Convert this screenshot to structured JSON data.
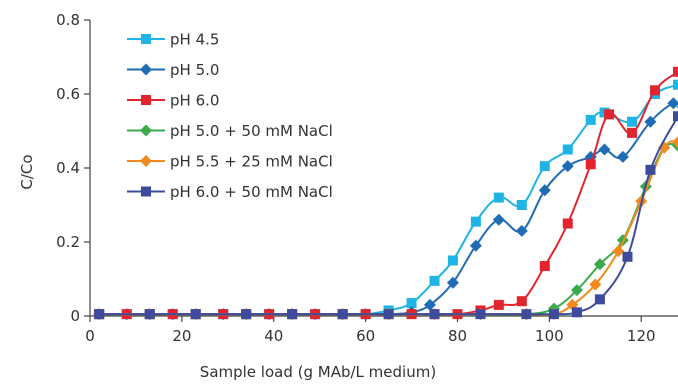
{
  "chart_data": {
    "type": "line",
    "title": "",
    "xlabel": "Sample load (g MAb/L medium)",
    "ylabel": "C/Co",
    "xlim": [
      0,
      128
    ],
    "ylim": [
      0,
      0.8
    ],
    "xticks": [
      0,
      20,
      40,
      60,
      80,
      100,
      120
    ],
    "yticks": [
      0,
      0.2,
      0.4,
      0.6,
      0.8
    ],
    "x_tick_labels": [
      "0",
      "20",
      "40",
      "60",
      "80",
      "100",
      "120"
    ],
    "y_tick_labels": [
      "0",
      "0.2",
      "0.4",
      "0.6",
      "0.8"
    ],
    "grid": false,
    "legend_position": "top-left",
    "series": [
      {
        "name": "pH 4.5",
        "color": "#1EB4E6",
        "marker": "square",
        "points": [
          [
            2,
            0.005
          ],
          [
            8,
            0.005
          ],
          [
            13,
            0.005
          ],
          [
            18,
            0.005
          ],
          [
            23,
            0.005
          ],
          [
            29,
            0.005
          ],
          [
            34,
            0.005
          ],
          [
            39,
            0.005
          ],
          [
            44,
            0.005
          ],
          [
            49,
            0.005
          ],
          [
            55,
            0.005
          ],
          [
            60,
            0.005
          ],
          [
            65,
            0.015
          ],
          [
            70,
            0.035
          ],
          [
            75,
            0.095
          ],
          [
            79,
            0.15
          ],
          [
            84,
            0.255
          ],
          [
            89,
            0.32
          ],
          [
            94,
            0.3
          ],
          [
            99,
            0.405
          ],
          [
            104,
            0.45
          ],
          [
            109,
            0.53
          ],
          [
            112,
            0.55
          ],
          [
            118,
            0.525
          ],
          [
            123,
            0.6
          ],
          [
            128,
            0.625
          ]
        ]
      },
      {
        "name": "pH 5.0",
        "color": "#1F6CB4",
        "marker": "diamond",
        "points": [
          [
            2,
            0.005
          ],
          [
            8,
            0.005
          ],
          [
            13,
            0.005
          ],
          [
            18,
            0.005
          ],
          [
            23,
            0.005
          ],
          [
            29,
            0.005
          ],
          [
            34,
            0.005
          ],
          [
            39,
            0.005
          ],
          [
            44,
            0.005
          ],
          [
            49,
            0.005
          ],
          [
            55,
            0.005
          ],
          [
            60,
            0.005
          ],
          [
            65,
            0.005
          ],
          [
            70,
            0.01
          ],
          [
            74,
            0.03
          ],
          [
            79,
            0.09
          ],
          [
            84,
            0.19
          ],
          [
            89,
            0.26
          ],
          [
            94,
            0.23
          ],
          [
            99,
            0.34
          ],
          [
            104,
            0.405
          ],
          [
            109,
            0.43
          ],
          [
            112,
            0.45
          ],
          [
            116,
            0.43
          ],
          [
            122,
            0.525
          ],
          [
            127,
            0.575
          ],
          [
            129,
            0.565
          ]
        ]
      },
      {
        "name": "pH 6.0",
        "color": "#E2242E",
        "marker": "square",
        "points": [
          [
            2,
            0.005
          ],
          [
            8,
            0.005
          ],
          [
            13,
            0.005
          ],
          [
            18,
            0.005
          ],
          [
            23,
            0.005
          ],
          [
            29,
            0.005
          ],
          [
            34,
            0.005
          ],
          [
            39,
            0.005
          ],
          [
            44,
            0.005
          ],
          [
            49,
            0.005
          ],
          [
            55,
            0.005
          ],
          [
            60,
            0.005
          ],
          [
            65,
            0.005
          ],
          [
            70,
            0.005
          ],
          [
            75,
            0.005
          ],
          [
            80,
            0.005
          ],
          [
            85,
            0.015
          ],
          [
            89,
            0.03
          ],
          [
            94,
            0.04
          ],
          [
            99,
            0.135
          ],
          [
            104,
            0.25
          ],
          [
            109,
            0.41
          ],
          [
            113,
            0.545
          ],
          [
            118,
            0.495
          ],
          [
            123,
            0.61
          ],
          [
            128,
            0.66
          ]
        ]
      },
      {
        "name": "pH 5.0 + 50 mM NaCl",
        "color": "#3BAA4A",
        "marker": "diamond",
        "points": [
          [
            2,
            0.005
          ],
          [
            13,
            0.005
          ],
          [
            23,
            0.005
          ],
          [
            34,
            0.005
          ],
          [
            44,
            0.005
          ],
          [
            55,
            0.005
          ],
          [
            65,
            0.005
          ],
          [
            75,
            0.005
          ],
          [
            85,
            0.005
          ],
          [
            95,
            0.005
          ],
          [
            101,
            0.02
          ],
          [
            106,
            0.07
          ],
          [
            111,
            0.14
          ],
          [
            116,
            0.205
          ],
          [
            121,
            0.35
          ],
          [
            125,
            0.455
          ],
          [
            128,
            0.46
          ]
        ]
      },
      {
        "name": "pH 5.5 + 25 mM NaCl",
        "color": "#F28A1E",
        "marker": "diamond",
        "points": [
          [
            2,
            0.005
          ],
          [
            13,
            0.005
          ],
          [
            23,
            0.005
          ],
          [
            34,
            0.005
          ],
          [
            44,
            0.005
          ],
          [
            55,
            0.005
          ],
          [
            65,
            0.005
          ],
          [
            75,
            0.005
          ],
          [
            85,
            0.005
          ],
          [
            95,
            0.005
          ],
          [
            101,
            0.005
          ],
          [
            105,
            0.03
          ],
          [
            110,
            0.085
          ],
          [
            115,
            0.175
          ],
          [
            120,
            0.31
          ],
          [
            125,
            0.455
          ],
          [
            128,
            0.47
          ]
        ]
      },
      {
        "name": "pH 6.0 + 50 mM NaCl",
        "color": "#3E4B9C",
        "marker": "square",
        "points": [
          [
            2,
            0.005
          ],
          [
            13,
            0.005
          ],
          [
            23,
            0.005
          ],
          [
            34,
            0.005
          ],
          [
            44,
            0.005
          ],
          [
            55,
            0.005
          ],
          [
            65,
            0.005
          ],
          [
            75,
            0.005
          ],
          [
            85,
            0.005
          ],
          [
            95,
            0.005
          ],
          [
            101,
            0.005
          ],
          [
            106,
            0.01
          ],
          [
            111,
            0.045
          ],
          [
            117,
            0.16
          ],
          [
            122,
            0.395
          ],
          [
            128,
            0.54
          ]
        ]
      }
    ]
  }
}
